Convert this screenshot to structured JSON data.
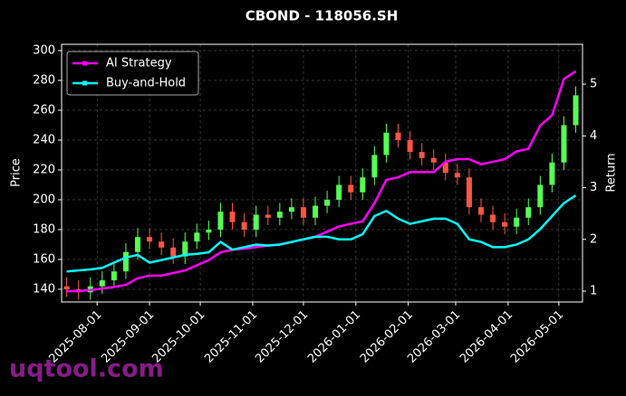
{
  "chart_data": {
    "type": "candlestick",
    "title": "CBOND - 118056.SH",
    "ylabel": "Price",
    "y2label": "Return",
    "watermark": "uqtool.com",
    "x": [
      "2025-07-14",
      "2025-07-21",
      "2025-07-28",
      "2025-08-04",
      "2025-08-11",
      "2025-08-18",
      "2025-08-25",
      "2025-09-01",
      "2025-09-08",
      "2025-09-15",
      "2025-09-22",
      "2025-09-29",
      "2025-10-06",
      "2025-10-13",
      "2025-10-20",
      "2025-10-27",
      "2025-11-03",
      "2025-11-10",
      "2025-11-17",
      "2025-11-24",
      "2025-12-01",
      "2025-12-08",
      "2025-12-15",
      "2025-12-22",
      "2025-12-29",
      "2026-01-05",
      "2026-01-12",
      "2026-01-19",
      "2026-01-26",
      "2026-02-02",
      "2026-02-09",
      "2026-02-16",
      "2026-02-23",
      "2026-03-02",
      "2026-03-09",
      "2026-03-16",
      "2026-03-23",
      "2026-03-30",
      "2026-04-06",
      "2026-04-13",
      "2026-04-20",
      "2026-04-27",
      "2026-05-04",
      "2026-05-11"
    ],
    "open": [
      142,
      140,
      138,
      142,
      146,
      152,
      165,
      175,
      172,
      168,
      162,
      172,
      178,
      180,
      192,
      185,
      180,
      190,
      188,
      192,
      195,
      188,
      196,
      200,
      210,
      205,
      215,
      230,
      245,
      240,
      232,
      228,
      225,
      218,
      215,
      195,
      190,
      185,
      182,
      188,
      195,
      210,
      225,
      250
    ],
    "high": [
      148,
      146,
      148,
      152,
      158,
      171,
      181,
      181,
      178,
      174,
      178,
      184,
      186,
      198,
      198,
      191,
      196,
      196,
      198,
      201,
      201,
      202,
      206,
      216,
      216,
      221,
      236,
      251,
      251,
      246,
      238,
      234,
      231,
      224,
      221,
      201,
      196,
      191,
      194,
      201,
      216,
      231,
      256,
      276
    ],
    "low": [
      135,
      133,
      133,
      137,
      141,
      147,
      160,
      167,
      163,
      157,
      157,
      167,
      173,
      175,
      180,
      175,
      175,
      183,
      183,
      187,
      183,
      183,
      191,
      195,
      200,
      200,
      210,
      225,
      235,
      227,
      223,
      220,
      213,
      210,
      190,
      185,
      180,
      177,
      177,
      183,
      190,
      205,
      220,
      245
    ],
    "close": [
      140,
      138,
      142,
      146,
      152,
      165,
      175,
      172,
      168,
      162,
      172,
      178,
      180,
      192,
      185,
      180,
      190,
      188,
      192,
      195,
      188,
      196,
      200,
      210,
      205,
      215,
      230,
      245,
      240,
      232,
      228,
      225,
      218,
      215,
      195,
      190,
      185,
      182,
      188,
      195,
      210,
      225,
      250,
      270
    ],
    "up_color": "#55ff55",
    "down_color": "#ff5544",
    "series": [
      {
        "name": "AI Strategy",
        "color": "#ff00ff",
        "axis": "y2",
        "values": [
          1.0,
          1.0,
          1.02,
          1.05,
          1.08,
          1.12,
          1.25,
          1.3,
          1.3,
          1.35,
          1.4,
          1.5,
          1.6,
          1.75,
          1.8,
          1.82,
          1.85,
          1.88,
          1.9,
          1.95,
          2.0,
          2.05,
          2.15,
          2.25,
          2.3,
          2.35,
          2.7,
          3.15,
          3.2,
          3.3,
          3.3,
          3.3,
          3.5,
          3.55,
          3.55,
          3.45,
          3.5,
          3.55,
          3.7,
          3.75,
          4.2,
          4.4,
          5.1,
          5.25
        ]
      },
      {
        "name": "Buy-and-Hold",
        "color": "#00ffff",
        "axis": "y2",
        "values": [
          1.38,
          1.4,
          1.42,
          1.45,
          1.55,
          1.65,
          1.7,
          1.55,
          1.6,
          1.65,
          1.7,
          1.72,
          1.75,
          1.95,
          1.8,
          1.85,
          1.9,
          1.88,
          1.9,
          1.95,
          2.0,
          2.05,
          2.05,
          2.0,
          2.0,
          2.1,
          2.45,
          2.55,
          2.4,
          2.3,
          2.35,
          2.4,
          2.4,
          2.3,
          2.0,
          1.95,
          1.85,
          1.85,
          1.9,
          2.0,
          2.2,
          2.45,
          2.7,
          2.85
        ]
      }
    ],
    "xlim": [
      "2025-07-11",
      "2026-05-15"
    ],
    "xticks": [
      "2025-08-01",
      "2025-09-01",
      "2025-10-01",
      "2025-11-01",
      "2025-12-01",
      "2026-01-01",
      "2026-02-01",
      "2026-03-01",
      "2026-04-01",
      "2026-05-01"
    ],
    "ylim": [
      131.5,
      304.2
    ],
    "yticks": [
      140,
      160,
      180,
      200,
      220,
      240,
      260,
      280,
      300
    ],
    "y2lim": [
      0.79,
      5.77
    ],
    "y2ticks": [
      1,
      2,
      3,
      4,
      5
    ],
    "grid": true,
    "legend": "upper-left"
  }
}
